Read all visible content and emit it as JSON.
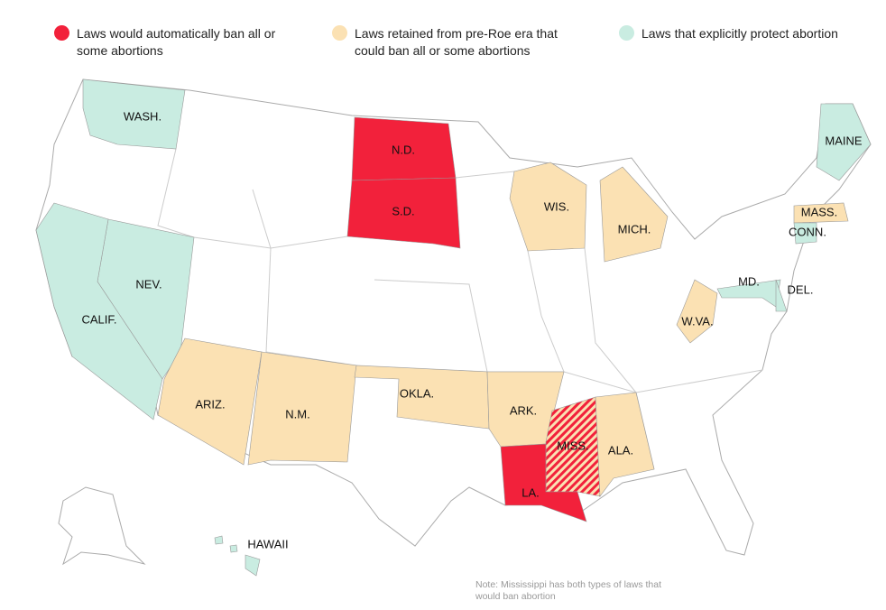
{
  "legend": [
    {
      "label": "Laws would automatically ban all or some abortions",
      "color": "#f2213b"
    },
    {
      "label": "Laws retained from pre-Roe era that could ban all or some abortions",
      "color": "#fbe1b3"
    },
    {
      "label": "Laws that explicitly protect abortion",
      "color": "#c9ece1"
    }
  ],
  "states": [
    {
      "label": "WASH.",
      "laws": [
        2
      ]
    },
    {
      "label": "N.D.",
      "laws": [
        0
      ]
    },
    {
      "label": "S.D.",
      "laws": [
        0
      ]
    },
    {
      "label": "MAINE",
      "laws": [
        2
      ]
    },
    {
      "label": "WIS.",
      "laws": [
        1
      ]
    },
    {
      "label": "MICH.",
      "laws": [
        1
      ]
    },
    {
      "label": "MASS.",
      "laws": [
        1
      ]
    },
    {
      "label": "CONN.",
      "laws": [
        2
      ]
    },
    {
      "label": "NEV.",
      "laws": [
        2
      ]
    },
    {
      "label": "CALIF.",
      "laws": [
        2
      ]
    },
    {
      "label": "MD.",
      "laws": [
        2
      ]
    },
    {
      "label": "DEL.",
      "laws": [
        2
      ]
    },
    {
      "label": "W.VA.",
      "laws": [
        1
      ]
    },
    {
      "label": "ARIZ.",
      "laws": [
        1
      ]
    },
    {
      "label": "N.M.",
      "laws": [
        1
      ]
    },
    {
      "label": "OKLA.",
      "laws": [
        1
      ]
    },
    {
      "label": "ARK.",
      "laws": [
        1
      ]
    },
    {
      "label": "MISS.",
      "laws": [
        0,
        1
      ]
    },
    {
      "label": "ALA.",
      "laws": [
        1
      ]
    },
    {
      "label": "LA.",
      "laws": [
        0
      ]
    },
    {
      "label": "HAWAII",
      "laws": [
        2
      ]
    }
  ],
  "note": "Note: Mississippi has both types of laws that would ban abortion"
}
